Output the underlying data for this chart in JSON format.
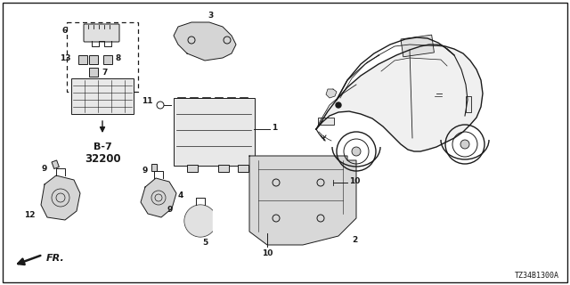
{
  "bg_color": "#ffffff",
  "border_color": "#000000",
  "diagram_id": "TZ34B1300A",
  "dark": "#1a1a1a",
  "lw": 0.7
}
